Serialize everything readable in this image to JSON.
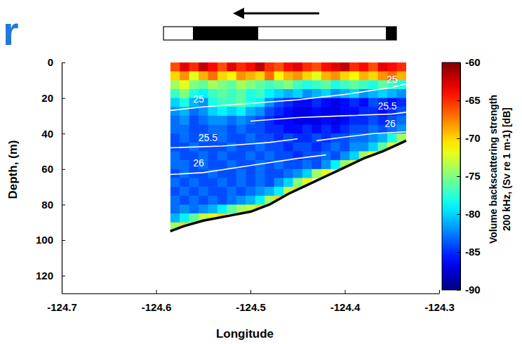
{
  "chart_data": {
    "type": "heatmap",
    "title": "r",
    "x_label": "Longitude",
    "y_label": "Depth, (m)",
    "xlim": [
      -124.7,
      -124.3
    ],
    "xticks": [
      -124.7,
      -124.6,
      -124.5,
      -124.4,
      -124.3
    ],
    "ylim": [
      0,
      130
    ],
    "yticks": [
      0,
      20,
      40,
      60,
      80,
      100,
      120
    ],
    "heatmap": {
      "x": [
        -124.58,
        -124.57,
        -124.56,
        -124.55,
        -124.54,
        -124.53,
        -124.52,
        -124.51,
        -124.5,
        -124.49,
        -124.48,
        -124.47,
        -124.46,
        -124.45,
        -124.44,
        -124.43,
        -124.42,
        -124.41,
        -124.4,
        -124.39,
        -124.38,
        -124.37,
        -124.36,
        -124.35,
        -124.34
      ],
      "y": [
        2.5,
        7.5,
        12.5,
        17.5,
        22.5,
        27.5,
        32.5,
        37.5,
        42.5,
        47.5,
        52.5,
        57.5,
        62.5,
        67.5,
        72.5,
        77.5,
        82.5,
        87.5,
        92.5
      ],
      "values": [
        [
          -66,
          -63,
          -65,
          -62,
          -64,
          -66,
          -63,
          -65,
          -64,
          -62,
          -65,
          -66,
          -64,
          -63,
          -65,
          -66,
          -64,
          -63,
          -62,
          -65,
          -64,
          -66,
          -63,
          -64,
          -65
        ],
        [
          -70,
          -68,
          -72,
          -69,
          -67,
          -70,
          -71,
          -68,
          -69,
          -70,
          -67,
          -71,
          -69,
          -68,
          -70,
          -72,
          -69,
          -68,
          -70,
          -71,
          -69,
          -70,
          -68,
          -67,
          -69
        ],
        [
          -74,
          -72,
          -75,
          -76,
          -74,
          -75,
          -76,
          -74,
          -75,
          -76,
          -77,
          -76,
          -75,
          -77,
          -78,
          -77,
          -76,
          -78,
          -77,
          -76,
          -77,
          -78,
          -76,
          -77,
          -78
        ],
        [
          -77,
          -75,
          -78,
          -79,
          -77,
          -76,
          -77,
          -76,
          -78,
          -77,
          -79,
          -80,
          -81,
          -80,
          -82,
          -81,
          -80,
          -82,
          -81,
          -80,
          -82,
          -81,
          -80,
          -81,
          -82
        ],
        [
          -80,
          -78,
          -81,
          -82,
          -78,
          -77,
          -77,
          -76,
          -78,
          -79,
          -82,
          -84,
          -85,
          -86,
          -86,
          -85,
          -86,
          -87,
          -86,
          -85,
          -86,
          -84,
          -85,
          -86,
          -85
        ],
        [
          -82,
          -81,
          -83,
          -82,
          -80,
          -79,
          -80,
          -79,
          -81,
          -82,
          -84,
          -85,
          -86,
          -87,
          -87,
          -86,
          -87,
          -87,
          -86,
          -86,
          -85,
          -85,
          -86,
          -85,
          -84
        ],
        [
          -83,
          -82,
          -84,
          -83,
          -82,
          -82,
          -83,
          -82,
          -83,
          -84,
          -85,
          -86,
          -86,
          -87,
          -87,
          -87,
          -86,
          -87,
          -86,
          -85,
          -85,
          -84,
          -85,
          -84,
          -83
        ],
        [
          -83,
          -83,
          -84,
          -84,
          -83,
          -83,
          -84,
          -83,
          -84,
          -84,
          -85,
          -85,
          -86,
          -86,
          -85,
          -86,
          -85,
          -86,
          -85,
          -84,
          -84,
          -83,
          -84,
          -83,
          -82
        ],
        [
          -84,
          -83,
          -84,
          -83,
          -84,
          -83,
          -84,
          -84,
          -83,
          -84,
          -84,
          -85,
          -84,
          -85,
          -85,
          -84,
          -85,
          -84,
          -84,
          -83,
          -83,
          -82,
          -81,
          -78,
          -74
        ],
        [
          -84,
          -84,
          -83,
          -84,
          -84,
          -84,
          -83,
          -84,
          -84,
          -83,
          -84,
          -84,
          -85,
          -84,
          -84,
          -85,
          -84,
          -83,
          -84,
          -82,
          -82,
          -80,
          -76,
          -72,
          null
        ],
        [
          -83,
          -84,
          -84,
          -83,
          -84,
          -83,
          -84,
          -84,
          -83,
          -84,
          -83,
          -84,
          -84,
          -85,
          -84,
          -84,
          -83,
          -84,
          -82,
          -80,
          -74,
          -72,
          null,
          null,
          null
        ],
        [
          -83,
          -83,
          -84,
          -83,
          -84,
          -84,
          -83,
          -84,
          -84,
          -83,
          -84,
          -83,
          -84,
          -84,
          -83,
          -84,
          -82,
          -79,
          -74,
          -72,
          null,
          null,
          null,
          null,
          null
        ],
        [
          -84,
          -83,
          -84,
          -84,
          -83,
          -84,
          -84,
          -83,
          -84,
          -83,
          -84,
          -84,
          -83,
          -82,
          -80,
          -74,
          -72,
          null,
          null,
          null,
          null,
          null,
          null,
          null,
          null
        ],
        [
          -83,
          -84,
          -83,
          -84,
          -84,
          -83,
          -84,
          -83,
          -84,
          -83,
          -84,
          -82,
          -80,
          -75,
          -72,
          null,
          null,
          null,
          null,
          null,
          null,
          null,
          null,
          null,
          null
        ],
        [
          -84,
          -83,
          -84,
          -83,
          -84,
          -84,
          -83,
          -84,
          -83,
          -82,
          -81,
          -79,
          -73,
          -70,
          null,
          null,
          null,
          null,
          null,
          null,
          null,
          null,
          null,
          null,
          null
        ],
        [
          -83,
          -84,
          -83,
          -84,
          -83,
          -84,
          -83,
          -82,
          -81,
          -79,
          -74,
          -70,
          null,
          null,
          null,
          null,
          null,
          null,
          null,
          null,
          null,
          null,
          null,
          null,
          null
        ],
        [
          -83,
          -82,
          -83,
          -82,
          -81,
          -79,
          -76,
          -74,
          -73,
          -70,
          null,
          null,
          null,
          null,
          null,
          null,
          null,
          null,
          null,
          null,
          null,
          null,
          null,
          null,
          null
        ],
        [
          -81,
          -79,
          -76,
          -73,
          -72,
          -70,
          null,
          null,
          null,
          null,
          null,
          null,
          null,
          null,
          null,
          null,
          null,
          null,
          null,
          null,
          null,
          null,
          null,
          null,
          null
        ],
        [
          -74,
          -70,
          null,
          null,
          null,
          null,
          null,
          null,
          null,
          null,
          null,
          null,
          null,
          null,
          null,
          null,
          null,
          null,
          null,
          null,
          null,
          null,
          null,
          null,
          null
        ]
      ]
    },
    "colorbar": {
      "label": [
        "Volume backscattering strength",
        "200 kHz, (Sv re 1 m-1) [dB]"
      ],
      "range": [
        -90,
        -60
      ],
      "ticks": [
        -60,
        -65,
        -70,
        -75,
        -80,
        -85,
        -90
      ]
    },
    "bottom": {
      "color": "#000000",
      "x": [
        -124.585,
        -124.57,
        -124.55,
        -124.52,
        -124.5,
        -124.48,
        -124.46,
        -124.44,
        -124.42,
        -124.4,
        -124.38,
        -124.36,
        -124.335
      ],
      "y": [
        95,
        92,
        89,
        86,
        84,
        80,
        74,
        69,
        64,
        59,
        54,
        50,
        44
      ]
    },
    "contours": [
      {
        "level": 25,
        "color": "#ffffff",
        "x": [
          -124.585,
          -124.55,
          -124.5,
          -124.45,
          -124.4,
          -124.35,
          -124.335
        ],
        "y": [
          27,
          25,
          23,
          21,
          18,
          14,
          12
        ],
        "label_x": [
          -124.555,
          -124.35
        ],
        "label_y": [
          24,
          13
        ]
      },
      {
        "level": 25.5,
        "color": "#ffffff",
        "x": [
          -124.5,
          -124.45,
          -124.4,
          -124.35,
          -124.335
        ],
        "y": [
          33,
          31,
          30,
          29,
          28
        ],
        "label_x": [
          -124.355
        ],
        "label_y": [
          28
        ]
      },
      {
        "level": 25.5,
        "color": "#ffffff",
        "x": [
          -124.585,
          -124.53,
          -124.48,
          -124.45
        ],
        "y": [
          48,
          47,
          45,
          43
        ],
        "label_x": [
          -124.545
        ],
        "label_y": [
          46
        ]
      },
      {
        "level": 26,
        "color": "#ffffff",
        "x": [
          -124.43,
          -124.4,
          -124.37,
          -124.335
        ],
        "y": [
          44,
          42,
          40,
          39
        ],
        "label_x": [
          -124.352
        ],
        "label_y": [
          38
        ]
      },
      {
        "level": 26,
        "color": "#ffffff",
        "x": [
          -124.585,
          -124.55,
          -124.5,
          -124.45,
          -124.42
        ],
        "y": [
          63,
          62,
          58,
          54,
          52
        ],
        "label_x": [
          -124.555
        ],
        "label_y": [
          60
        ]
      }
    ]
  }
}
